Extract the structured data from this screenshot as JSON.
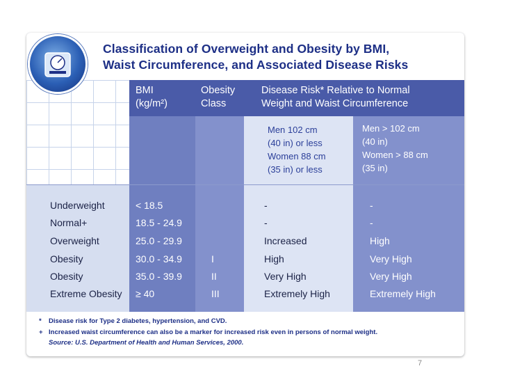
{
  "title_line1": "Classification of Overweight and Obesity by BMI,",
  "title_line2": "Waist Circumference, and Associated Disease Risks",
  "headers": {
    "bmi_1": "BMI",
    "bmi_2": "(kg/m²)",
    "obesity_1": "Obesity",
    "obesity_2": "Class",
    "risk_1": "Disease Risk* Relative to Normal",
    "risk_2": "Weight and Waist Circumference"
  },
  "subheaders": {
    "lower": [
      "Men 102 cm",
      "(40 in) or less",
      "Women 88 cm",
      "(35 in) or less"
    ],
    "higher": [
      "Men > 102 cm",
      "(40 in)",
      "Women > 88 cm",
      "(35 in)"
    ]
  },
  "rows": [
    {
      "category": "Underweight",
      "bmi": "< 18.5",
      "cls": "",
      "risk_low": "-",
      "risk_high": "-"
    },
    {
      "category": "Normal+",
      "bmi": "18.5 - 24.9",
      "cls": "",
      "risk_low": "-",
      "risk_high": "-"
    },
    {
      "category": "Overweight",
      "bmi": "25.0 - 29.9",
      "cls": "",
      "risk_low": "Increased",
      "risk_high": "High"
    },
    {
      "category": "Obesity",
      "bmi": "30.0 - 34.9",
      "cls": "I",
      "risk_low": "High",
      "risk_high": "Very High"
    },
    {
      "category": "Obesity",
      "bmi": "35.0 - 39.9",
      "cls": "II",
      "risk_low": "Very High",
      "risk_high": "Very High"
    },
    {
      "category": "Extreme Obesity",
      "bmi": "≥ 40",
      "cls": "III",
      "risk_low": "Extremely High",
      "risk_high": "Extremely High"
    }
  ],
  "footnotes": [
    {
      "mark": "*",
      "text": "Disease risk for Type 2 diabetes, hypertension, and CVD."
    },
    {
      "mark": "+",
      "text": "Increased waist circumference can also be a marker for increased risk even in persons of normal weight."
    },
    {
      "mark": "",
      "text": "Source: U.S. Department of Health and Human Services, 2000."
    }
  ],
  "page_number": "7"
}
